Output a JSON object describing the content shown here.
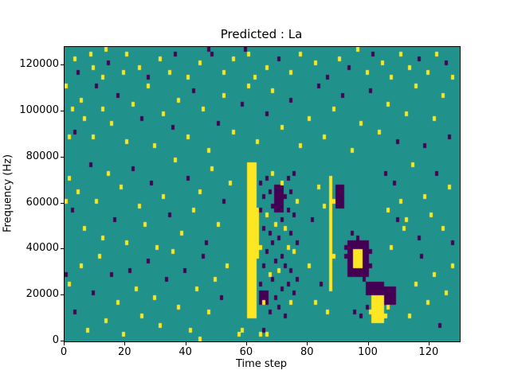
{
  "chart_data": {
    "type": "heatmap",
    "title": "Predicted : La",
    "xlabel": "Time step",
    "ylabel": "Frequency (Hz)",
    "x_range": [
      0,
      130
    ],
    "y_range": [
      0,
      128000
    ],
    "x_ticks": [
      0,
      20,
      40,
      60,
      80,
      100,
      120
    ],
    "y_ticks": [
      0,
      20000,
      40000,
      60000,
      80000,
      100000,
      120000
    ],
    "n_time_steps": 130,
    "n_freq_bins": 64,
    "freq_bin_hz": 2000,
    "grid": false,
    "legend": "none",
    "colors": {
      "figure_bg": "#ffffff",
      "plot_bg": "#21918c",
      "low": "#440154",
      "high": "#fde725",
      "axis": "#000000"
    },
    "value_colors": [
      "#440154",
      "#21918c",
      "#fde725"
    ],
    "blocks": [
      {
        "t": [
          60,
          62
        ],
        "f": [
          5,
          38
        ],
        "v": 2
      },
      {
        "t": [
          62,
          63
        ],
        "f": [
          18,
          28
        ],
        "v": 2
      },
      {
        "t": [
          87,
          87
        ],
        "f": [
          11,
          35
        ],
        "v": 2
      },
      {
        "t": [
          93,
          99
        ],
        "f": [
          14,
          21
        ],
        "v": 0
      },
      {
        "t": [
          95,
          97
        ],
        "f": [
          16,
          19
        ],
        "v": 2
      },
      {
        "t": [
          101,
          104
        ],
        "f": [
          4,
          9
        ],
        "v": 2
      },
      {
        "t": [
          105,
          108
        ],
        "f": [
          8,
          11
        ],
        "v": 0
      },
      {
        "t": [
          64,
          66
        ],
        "f": [
          8,
          10
        ],
        "v": 0
      },
      {
        "t": [
          99,
          104
        ],
        "f": [
          10,
          12
        ],
        "v": 0
      },
      {
        "t": [
          69,
          71
        ],
        "f": [
          28,
          33
        ],
        "v": 0
      },
      {
        "t": [
          89,
          91
        ],
        "f": [
          29,
          33
        ],
        "v": 0
      }
    ],
    "cells": [
      [
        3,
        61,
        2
      ],
      [
        4,
        58,
        0
      ],
      [
        8,
        62,
        2
      ],
      [
        9,
        59,
        2
      ],
      [
        12,
        57,
        2
      ],
      [
        13,
        63,
        2
      ],
      [
        14,
        60,
        0
      ],
      [
        19,
        58,
        2
      ],
      [
        20,
        62,
        2
      ],
      [
        24,
        59,
        2
      ],
      [
        27,
        57,
        0
      ],
      [
        31,
        61,
        2
      ],
      [
        34,
        58,
        2
      ],
      [
        36,
        62,
        0
      ],
      [
        40,
        57,
        2
      ],
      [
        44,
        60,
        2
      ],
      [
        47,
        63,
        0
      ],
      [
        48,
        62,
        0
      ],
      [
        52,
        58,
        2
      ],
      [
        55,
        61,
        2
      ],
      [
        59,
        63,
        0
      ],
      [
        60,
        62,
        2
      ],
      [
        62,
        57,
        2
      ],
      [
        66,
        59,
        2
      ],
      [
        70,
        61,
        0
      ],
      [
        74,
        58,
        2
      ],
      [
        77,
        62,
        2
      ],
      [
        82,
        60,
        2
      ],
      [
        86,
        57,
        0
      ],
      [
        90,
        61,
        2
      ],
      [
        93,
        59,
        0
      ],
      [
        96,
        63,
        2
      ],
      [
        99,
        58,
        2
      ],
      [
        101,
        62,
        0
      ],
      [
        104,
        60,
        2
      ],
      [
        107,
        57,
        2
      ],
      [
        110,
        62,
        2
      ],
      [
        113,
        59,
        2
      ],
      [
        116,
        61,
        0
      ],
      [
        119,
        58,
        2
      ],
      [
        122,
        62,
        2
      ],
      [
        125,
        60,
        0
      ],
      [
        127,
        57,
        2
      ],
      [
        2,
        50,
        2
      ],
      [
        3,
        45,
        0
      ],
      [
        5,
        52,
        2
      ],
      [
        6,
        48,
        2
      ],
      [
        9,
        44,
        2
      ],
      [
        10,
        55,
        0
      ],
      [
        12,
        50,
        2
      ],
      [
        15,
        47,
        2
      ],
      [
        17,
        53,
        0
      ],
      [
        20,
        43,
        2
      ],
      [
        22,
        51,
        2
      ],
      [
        25,
        48,
        0
      ],
      [
        27,
        55,
        2
      ],
      [
        29,
        42,
        2
      ],
      [
        32,
        49,
        2
      ],
      [
        35,
        46,
        0
      ],
      [
        37,
        52,
        2
      ],
      [
        40,
        44,
        2
      ],
      [
        42,
        54,
        0
      ],
      [
        45,
        50,
        2
      ],
      [
        47,
        41,
        2
      ],
      [
        50,
        47,
        0
      ],
      [
        52,
        53,
        2
      ],
      [
        55,
        45,
        2
      ],
      [
        58,
        51,
        0
      ],
      [
        60,
        55,
        2
      ],
      [
        63,
        43,
        2
      ],
      [
        66,
        49,
        0
      ],
      [
        68,
        54,
        2
      ],
      [
        71,
        46,
        2
      ],
      [
        74,
        52,
        0
      ],
      [
        77,
        42,
        2
      ],
      [
        80,
        48,
        2
      ],
      [
        83,
        55,
        0
      ],
      [
        85,
        44,
        2
      ],
      [
        88,
        50,
        2
      ],
      [
        91,
        53,
        0
      ],
      [
        94,
        41,
        2
      ],
      [
        97,
        47,
        2
      ],
      [
        100,
        54,
        0
      ],
      [
        103,
        45,
        2
      ],
      [
        106,
        51,
        2
      ],
      [
        109,
        43,
        0
      ],
      [
        112,
        49,
        2
      ],
      [
        115,
        55,
        2
      ],
      [
        118,
        42,
        0
      ],
      [
        121,
        48,
        2
      ],
      [
        124,
        53,
        2
      ],
      [
        126,
        44,
        0
      ],
      [
        1,
        35,
        2
      ],
      [
        2,
        28,
        0
      ],
      [
        4,
        32,
        2
      ],
      [
        6,
        24,
        2
      ],
      [
        8,
        38,
        0
      ],
      [
        10,
        30,
        2
      ],
      [
        12,
        22,
        2
      ],
      [
        14,
        36,
        2
      ],
      [
        16,
        26,
        0
      ],
      [
        18,
        33,
        2
      ],
      [
        20,
        21,
        2
      ],
      [
        22,
        37,
        0
      ],
      [
        24,
        29,
        2
      ],
      [
        26,
        25,
        2
      ],
      [
        28,
        34,
        0
      ],
      [
        30,
        20,
        2
      ],
      [
        32,
        31,
        2
      ],
      [
        34,
        27,
        0
      ],
      [
        36,
        39,
        2
      ],
      [
        38,
        23,
        2
      ],
      [
        40,
        35,
        0
      ],
      [
        42,
        28,
        2
      ],
      [
        44,
        32,
        2
      ],
      [
        46,
        21,
        0
      ],
      [
        48,
        37,
        2
      ],
      [
        50,
        25,
        2
      ],
      [
        52,
        30,
        0
      ],
      [
        54,
        34,
        2
      ],
      [
        112,
        26,
        2
      ],
      [
        114,
        38,
        2
      ],
      [
        116,
        22,
        0
      ],
      [
        118,
        31,
        2
      ],
      [
        120,
        27,
        2
      ],
      [
        122,
        36,
        0
      ],
      [
        124,
        24,
        2
      ],
      [
        126,
        33,
        2
      ],
      [
        127,
        21,
        0
      ],
      [
        1,
        12,
        2
      ],
      [
        3,
        6,
        0
      ],
      [
        5,
        16,
        2
      ],
      [
        7,
        2,
        2
      ],
      [
        9,
        10,
        0
      ],
      [
        11,
        18,
        2
      ],
      [
        13,
        4,
        2
      ],
      [
        15,
        14,
        0
      ],
      [
        17,
        8,
        2
      ],
      [
        19,
        1,
        2
      ],
      [
        21,
        15,
        0
      ],
      [
        23,
        11,
        2
      ],
      [
        25,
        5,
        2
      ],
      [
        27,
        17,
        0
      ],
      [
        29,
        9,
        2
      ],
      [
        31,
        3,
        2
      ],
      [
        33,
        13,
        0
      ],
      [
        35,
        19,
        2
      ],
      [
        37,
        7,
        2
      ],
      [
        39,
        15,
        0
      ],
      [
        41,
        2,
        2
      ],
      [
        43,
        11,
        2
      ],
      [
        45,
        18,
        0
      ],
      [
        47,
        6,
        2
      ],
      [
        49,
        13,
        2
      ],
      [
        51,
        9,
        0
      ],
      [
        53,
        16,
        2
      ],
      [
        113,
        5,
        2
      ],
      [
        115,
        12,
        2
      ],
      [
        117,
        18,
        0
      ],
      [
        119,
        8,
        2
      ],
      [
        121,
        14,
        2
      ],
      [
        123,
        3,
        0
      ],
      [
        125,
        10,
        2
      ],
      [
        127,
        16,
        2
      ],
      [
        64,
        34,
        0
      ],
      [
        64,
        28,
        0
      ],
      [
        64,
        20,
        2
      ],
      [
        64,
        12,
        0
      ],
      [
        65,
        31,
        0
      ],
      [
        65,
        24,
        0
      ],
      [
        65,
        16,
        0
      ],
      [
        65,
        8,
        2
      ],
      [
        66,
        35,
        0
      ],
      [
        66,
        27,
        2
      ],
      [
        66,
        19,
        0
      ],
      [
        66,
        10,
        0
      ],
      [
        67,
        32,
        0
      ],
      [
        67,
        23,
        0
      ],
      [
        67,
        14,
        2
      ],
      [
        67,
        6,
        0
      ],
      [
        68,
        36,
        2
      ],
      [
        68,
        29,
        0
      ],
      [
        68,
        21,
        0
      ],
      [
        68,
        13,
        0
      ],
      [
        69,
        33,
        0
      ],
      [
        69,
        25,
        2
      ],
      [
        69,
        17,
        0
      ],
      [
        69,
        9,
        0
      ],
      [
        70,
        30,
        0
      ],
      [
        70,
        22,
        0
      ],
      [
        70,
        15,
        2
      ],
      [
        70,
        7,
        0
      ],
      [
        71,
        34,
        2
      ],
      [
        71,
        26,
        0
      ],
      [
        71,
        18,
        0
      ],
      [
        71,
        11,
        0
      ],
      [
        72,
        31,
        0
      ],
      [
        72,
        24,
        2
      ],
      [
        72,
        16,
        0
      ],
      [
        72,
        5,
        0
      ],
      [
        73,
        35,
        0
      ],
      [
        73,
        28,
        0
      ],
      [
        73,
        20,
        2
      ],
      [
        73,
        12,
        0
      ],
      [
        74,
        32,
        0
      ],
      [
        74,
        23,
        0
      ],
      [
        74,
        15,
        0
      ],
      [
        74,
        8,
        2
      ],
      [
        75,
        36,
        0
      ],
      [
        75,
        27,
        0
      ],
      [
        75,
        19,
        2
      ],
      [
        75,
        10,
        0
      ],
      [
        76,
        30,
        2
      ],
      [
        76,
        21,
        0
      ],
      [
        76,
        13,
        0
      ],
      [
        88,
        18,
        2
      ],
      [
        88,
        30,
        2
      ],
      [
        92,
        18,
        0
      ],
      [
        92,
        20,
        0
      ],
      [
        100,
        16,
        0
      ],
      [
        100,
        19,
        0
      ],
      [
        94,
        23,
        0
      ],
      [
        96,
        22,
        0
      ],
      [
        98,
        13,
        0
      ],
      [
        100,
        6,
        2
      ],
      [
        105,
        5,
        2
      ],
      [
        106,
        7,
        2
      ],
      [
        95,
        6,
        0
      ],
      [
        97,
        5,
        0
      ],
      [
        99,
        7,
        0
      ],
      [
        106,
        28,
        2
      ],
      [
        108,
        34,
        0
      ],
      [
        110,
        30,
        2
      ],
      [
        111,
        24,
        2
      ],
      [
        105,
        36,
        0
      ],
      [
        107,
        20,
        2
      ],
      [
        109,
        26,
        0
      ],
      [
        80,
        16,
        2
      ],
      [
        81,
        26,
        0
      ],
      [
        82,
        8,
        2
      ],
      [
        83,
        33,
        2
      ],
      [
        84,
        12,
        0
      ],
      [
        85,
        29,
        2
      ],
      [
        86,
        6,
        2
      ],
      [
        57,
        1,
        2
      ],
      [
        58,
        2,
        2
      ],
      [
        64,
        1,
        2
      ],
      [
        65,
        2,
        0
      ],
      [
        66,
        1,
        2
      ],
      [
        0,
        30,
        2
      ],
      [
        0,
        14,
        0
      ],
      [
        0,
        55,
        2
      ],
      [
        1,
        44,
        2
      ],
      [
        44,
        0,
        2
      ]
    ]
  }
}
